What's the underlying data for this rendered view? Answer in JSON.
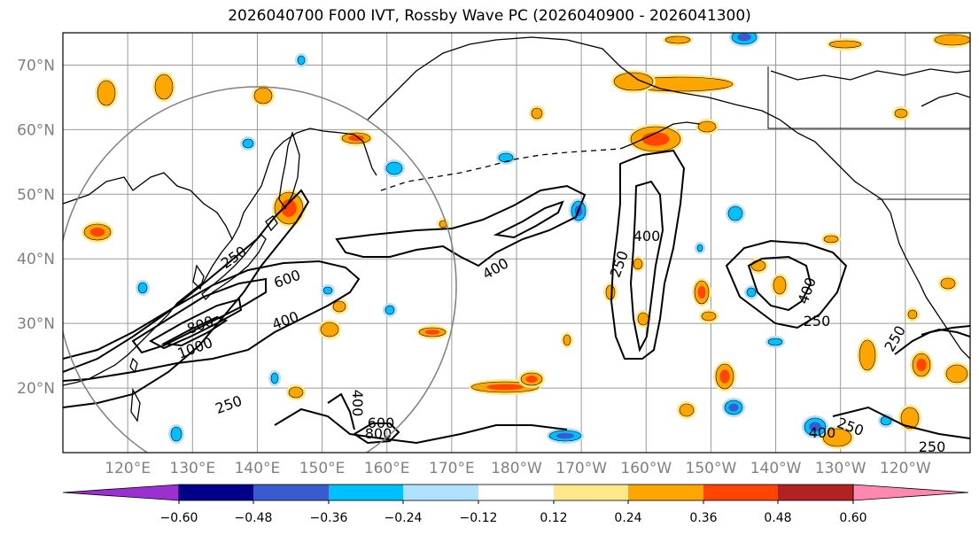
{
  "title": "2026040700 F000 IVT, Rossby Wave PC (2026040900 - 2026041300)",
  "map": {
    "lat_labels": [
      "70°N",
      "60°N",
      "50°N",
      "40°N",
      "30°N",
      "20°N"
    ],
    "lat_values": [
      70,
      60,
      50,
      40,
      30,
      20
    ],
    "lon_labels": [
      "120°E",
      "130°E",
      "140°E",
      "150°E",
      "160°E",
      "170°E",
      "180°W",
      "170°W",
      "160°W",
      "150°W",
      "140°W",
      "130°W",
      "120°W"
    ],
    "lat_range": [
      10,
      75
    ],
    "lon_range_east_deg": [
      110,
      250
    ],
    "contour_labels": [
      "1000",
      "800",
      "600",
      "400",
      "250",
      "400",
      "250",
      "400",
      "600",
      "800",
      "400",
      "250",
      "400",
      "250",
      "250",
      "400",
      "250",
      "250"
    ]
  },
  "colorbar": {
    "ticks": [
      "−0.60",
      "−0.48",
      "−0.36",
      "−0.24",
      "−0.12",
      "0.12",
      "0.24",
      "0.36",
      "0.48",
      "0.60"
    ],
    "colors": [
      "#9b30d0",
      "#00008b",
      "#3a5bcf",
      "#00bfff",
      "#b0e2ff",
      "#ffffff",
      "#ffe88a",
      "#ffa500",
      "#ff4500",
      "#b22222",
      "#ff88b0"
    ]
  },
  "colors": {
    "pos1": "#ffe88a",
    "pos2": "#ffa500",
    "pos3": "#ff4500",
    "neg1": "#b0e2ff",
    "neg2": "#00bfff",
    "neg3": "#3a5bcf"
  }
}
